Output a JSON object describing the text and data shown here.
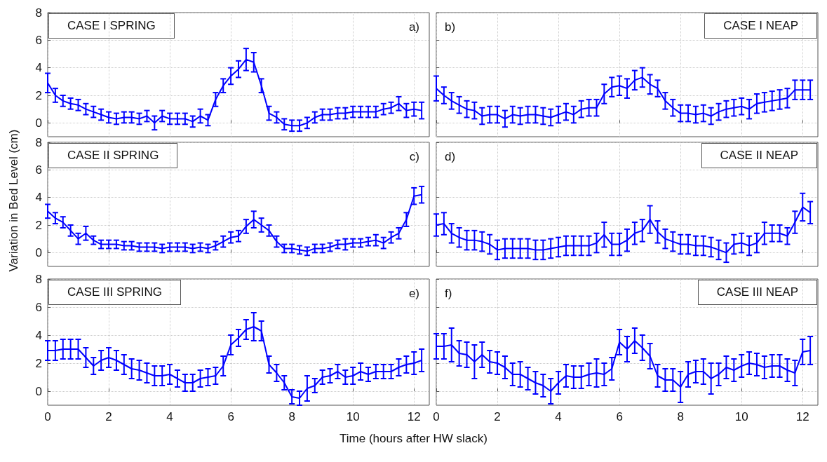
{
  "chart_data": [
    {
      "type": "line",
      "title": "CASE I SPRING",
      "annotations": [
        "a)"
      ],
      "xlim": [
        0,
        12.5
      ],
      "xticks": [
        0,
        2,
        4,
        6,
        8,
        10,
        12
      ],
      "ylim": [
        -1,
        8
      ],
      "yticks": [
        0,
        2,
        4,
        6,
        8
      ],
      "grid": true,
      "marker": "none",
      "tick_labels": "y",
      "x": [
        0,
        0.25,
        0.5,
        0.75,
        1,
        1.25,
        1.5,
        1.75,
        2,
        2.25,
        2.5,
        2.75,
        3,
        3.25,
        3.5,
        3.75,
        4,
        4.25,
        4.5,
        4.75,
        5,
        5.25,
        5.5,
        5.75,
        6,
        6.25,
        6.5,
        6.75,
        7,
        7.25,
        7.5,
        7.75,
        8,
        8.25,
        8.5,
        8.75,
        9,
        9.25,
        9.5,
        9.75,
        10,
        10.25,
        10.5,
        10.75,
        11,
        11.25,
        11.5,
        11.75,
        12,
        12.25
      ],
      "series": [
        {
          "color": "#0000ff",
          "values": [
            2.9,
            2.0,
            1.6,
            1.4,
            1.3,
            1.0,
            0.8,
            0.6,
            0.4,
            0.3,
            0.4,
            0.4,
            0.3,
            0.5,
            0.0,
            0.5,
            0.3,
            0.3,
            0.3,
            0.1,
            0.5,
            0.2,
            1.7,
            2.7,
            3.4,
            3.9,
            4.6,
            4.4,
            2.7,
            0.7,
            0.4,
            -0.1,
            -0.2,
            -0.2,
            0.0,
            0.4,
            0.6,
            0.6,
            0.7,
            0.7,
            0.8,
            0.8,
            0.8,
            0.8,
            1.0,
            1.1,
            1.4,
            0.9,
            1.0,
            0.9
          ],
          "errors": [
            0.7,
            0.5,
            0.4,
            0.4,
            0.4,
            0.4,
            0.4,
            0.4,
            0.4,
            0.4,
            0.4,
            0.4,
            0.4,
            0.4,
            0.5,
            0.4,
            0.4,
            0.4,
            0.4,
            0.4,
            0.5,
            0.4,
            0.5,
            0.5,
            0.6,
            0.6,
            0.8,
            0.7,
            0.5,
            0.5,
            0.4,
            0.4,
            0.4,
            0.4,
            0.4,
            0.4,
            0.4,
            0.4,
            0.4,
            0.4,
            0.4,
            0.4,
            0.4,
            0.4,
            0.4,
            0.4,
            0.5,
            0.5,
            0.5,
            0.6
          ]
        }
      ]
    },
    {
      "type": "line",
      "title": "CASE I NEAP",
      "annotations": [
        "b)"
      ],
      "xlim": [
        0,
        12.5
      ],
      "xticks": [
        0,
        2,
        4,
        6,
        8,
        10,
        12
      ],
      "ylim": [
        -1,
        8
      ],
      "yticks": [
        0,
        2,
        4,
        6,
        8
      ],
      "grid": true,
      "marker": "none",
      "tick_labels": false,
      "x": [
        0,
        0.25,
        0.5,
        0.75,
        1,
        1.25,
        1.5,
        1.75,
        2,
        2.25,
        2.5,
        2.75,
        3,
        3.25,
        3.5,
        3.75,
        4,
        4.25,
        4.5,
        4.75,
        5,
        5.25,
        5.5,
        5.75,
        6,
        6.25,
        6.5,
        6.75,
        7,
        7.25,
        7.5,
        7.75,
        8,
        8.25,
        8.5,
        8.75,
        9,
        9.25,
        9.5,
        9.75,
        10,
        10.25,
        10.5,
        10.75,
        11,
        11.25,
        11.5,
        11.75,
        12,
        12.25
      ],
      "series": [
        {
          "color": "#0000ff",
          "values": [
            2.5,
            2.0,
            1.6,
            1.3,
            1.0,
            0.9,
            0.5,
            0.6,
            0.6,
            0.3,
            0.6,
            0.5,
            0.6,
            0.6,
            0.5,
            0.4,
            0.6,
            0.8,
            0.6,
            1.0,
            1.1,
            1.1,
            2.1,
            2.6,
            2.7,
            2.5,
            3.1,
            3.3,
            2.8,
            2.5,
            1.6,
            1.1,
            0.7,
            0.7,
            0.6,
            0.7,
            0.5,
            0.8,
            1.0,
            1.1,
            1.2,
            1.0,
            1.4,
            1.5,
            1.6,
            1.7,
            1.8,
            2.4,
            2.4,
            2.4
          ],
          "errors": [
            0.9,
            0.6,
            0.6,
            0.6,
            0.6,
            0.6,
            0.6,
            0.6,
            0.6,
            0.6,
            0.6,
            0.6,
            0.6,
            0.6,
            0.6,
            0.6,
            0.6,
            0.6,
            0.6,
            0.6,
            0.6,
            0.6,
            0.7,
            0.7,
            0.7,
            0.7,
            0.7,
            0.7,
            0.7,
            0.6,
            0.6,
            0.6,
            0.6,
            0.6,
            0.6,
            0.6,
            0.6,
            0.6,
            0.6,
            0.6,
            0.6,
            0.7,
            0.7,
            0.7,
            0.7,
            0.7,
            0.7,
            0.7,
            0.7,
            0.7
          ]
        }
      ]
    },
    {
      "type": "line",
      "title": "CASE II SPRING",
      "annotations": [
        "c)"
      ],
      "ylabel": "Variation in Bed Level (cm)",
      "xlim": [
        0,
        12.5
      ],
      "xticks": [
        0,
        2,
        4,
        6,
        8,
        10,
        12
      ],
      "ylim": [
        -1,
        8
      ],
      "yticks": [
        0,
        2,
        4,
        6,
        8
      ],
      "grid": true,
      "marker": "none",
      "tick_labels": "y",
      "x": [
        0,
        0.25,
        0.5,
        0.75,
        1,
        1.25,
        1.5,
        1.75,
        2,
        2.25,
        2.5,
        2.75,
        3,
        3.25,
        3.5,
        3.75,
        4,
        4.25,
        4.5,
        4.75,
        5,
        5.25,
        5.5,
        5.75,
        6,
        6.25,
        6.5,
        6.75,
        7,
        7.25,
        7.5,
        7.75,
        8,
        8.25,
        8.5,
        8.75,
        9,
        9.25,
        9.5,
        9.75,
        10,
        10.25,
        10.5,
        10.75,
        11,
        11.25,
        11.5,
        11.75,
        12,
        12.25
      ],
      "series": [
        {
          "color": "#0000ff",
          "values": [
            3.0,
            2.5,
            2.2,
            1.6,
            1.0,
            1.4,
            0.9,
            0.6,
            0.6,
            0.6,
            0.5,
            0.5,
            0.4,
            0.4,
            0.4,
            0.3,
            0.4,
            0.4,
            0.4,
            0.3,
            0.4,
            0.3,
            0.5,
            0.8,
            1.1,
            1.2,
            1.9,
            2.4,
            2.0,
            1.6,
            0.8,
            0.3,
            0.3,
            0.2,
            0.1,
            0.3,
            0.3,
            0.4,
            0.6,
            0.6,
            0.7,
            0.7,
            0.8,
            0.9,
            0.7,
            1.1,
            1.4,
            2.4,
            4.1,
            4.2
          ],
          "errors": [
            0.5,
            0.4,
            0.4,
            0.4,
            0.4,
            0.5,
            0.3,
            0.3,
            0.3,
            0.3,
            0.3,
            0.3,
            0.3,
            0.3,
            0.3,
            0.3,
            0.3,
            0.3,
            0.3,
            0.3,
            0.3,
            0.3,
            0.3,
            0.4,
            0.4,
            0.4,
            0.5,
            0.6,
            0.5,
            0.4,
            0.4,
            0.3,
            0.3,
            0.3,
            0.3,
            0.3,
            0.3,
            0.3,
            0.3,
            0.4,
            0.3,
            0.3,
            0.3,
            0.4,
            0.4,
            0.4,
            0.4,
            0.5,
            0.6,
            0.6
          ]
        }
      ]
    },
    {
      "type": "line",
      "title": "CASE II NEAP",
      "annotations": [
        "d)"
      ],
      "xlim": [
        0,
        12.5
      ],
      "xticks": [
        0,
        2,
        4,
        6,
        8,
        10,
        12
      ],
      "ylim": [
        -1,
        8
      ],
      "yticks": [
        0,
        2,
        4,
        6,
        8
      ],
      "grid": true,
      "marker": "none",
      "tick_labels": false,
      "x": [
        0,
        0.25,
        0.5,
        0.75,
        1,
        1.25,
        1.5,
        1.75,
        2,
        2.25,
        2.5,
        2.75,
        3,
        3.25,
        3.5,
        3.75,
        4,
        4.25,
        4.5,
        4.75,
        5,
        5.25,
        5.5,
        5.75,
        6,
        6.25,
        6.5,
        6.75,
        7,
        7.25,
        7.5,
        7.75,
        8,
        8.25,
        8.5,
        8.75,
        9,
        9.25,
        9.5,
        9.75,
        10,
        10.25,
        10.5,
        10.75,
        11,
        11.25,
        11.5,
        11.75,
        12,
        12.25
      ],
      "series": [
        {
          "color": "#0000ff",
          "values": [
            2.0,
            2.1,
            1.4,
            1.1,
            0.9,
            0.9,
            0.8,
            0.6,
            0.2,
            0.3,
            0.3,
            0.3,
            0.3,
            0.2,
            0.2,
            0.3,
            0.4,
            0.5,
            0.5,
            0.5,
            0.5,
            0.7,
            1.3,
            0.6,
            0.6,
            0.9,
            1.4,
            1.6,
            2.4,
            1.5,
            1.0,
            0.8,
            0.6,
            0.6,
            0.5,
            0.5,
            0.4,
            0.2,
            0.0,
            0.6,
            0.7,
            0.5,
            0.7,
            1.4,
            1.4,
            1.4,
            1.2,
            2.2,
            3.3,
            2.9
          ],
          "errors": [
            0.8,
            0.8,
            0.7,
            0.7,
            0.7,
            0.7,
            0.7,
            0.7,
            0.7,
            0.7,
            0.7,
            0.7,
            0.7,
            0.7,
            0.7,
            0.7,
            0.7,
            0.7,
            0.7,
            0.7,
            0.7,
            0.7,
            0.9,
            0.8,
            0.8,
            0.8,
            0.8,
            0.8,
            1.0,
            0.8,
            0.7,
            0.7,
            0.7,
            0.7,
            0.7,
            0.7,
            0.7,
            0.7,
            0.7,
            0.7,
            0.7,
            0.7,
            0.7,
            0.8,
            0.6,
            0.6,
            0.6,
            0.8,
            1.0,
            0.8
          ]
        }
      ]
    },
    {
      "type": "line",
      "title": "CASE III SPRING",
      "annotations": [
        "e)"
      ],
      "xlabel": "Time (hours after HW slack)",
      "xlim": [
        0,
        12.5
      ],
      "xticks": [
        0,
        2,
        4,
        6,
        8,
        10,
        12
      ],
      "ylim": [
        -1,
        8
      ],
      "yticks": [
        0,
        2,
        4,
        6,
        8
      ],
      "grid": true,
      "marker": "none",
      "x": [
        0,
        0.25,
        0.5,
        0.75,
        1,
        1.25,
        1.5,
        1.75,
        2,
        2.25,
        2.5,
        2.75,
        3,
        3.25,
        3.5,
        3.75,
        4,
        4.25,
        4.5,
        4.75,
        5,
        5.25,
        5.5,
        5.75,
        6,
        6.25,
        6.5,
        6.75,
        7,
        7.25,
        7.5,
        7.75,
        8,
        8.25,
        8.5,
        8.75,
        9,
        9.25,
        9.5,
        9.75,
        10,
        10.25,
        10.5,
        10.75,
        11,
        11.25,
        11.5,
        11.75,
        12,
        12.25
      ],
      "series": [
        {
          "color": "#0000ff",
          "values": [
            2.9,
            2.9,
            3.0,
            3.0,
            3.0,
            2.4,
            1.8,
            2.2,
            2.4,
            2.2,
            1.9,
            1.6,
            1.5,
            1.3,
            1.1,
            1.1,
            1.2,
            0.9,
            0.6,
            0.6,
            0.9,
            1.0,
            1.1,
            1.8,
            3.3,
            3.8,
            4.4,
            4.6,
            4.3,
            1.9,
            1.3,
            0.6,
            -0.4,
            -0.5,
            0.2,
            0.4,
            1.0,
            1.1,
            1.4,
            1.0,
            1.1,
            1.4,
            1.2,
            1.4,
            1.4,
            1.4,
            1.7,
            1.9,
            2.0,
            2.2
          ],
          "errors": [
            0.7,
            0.7,
            0.7,
            0.7,
            0.7,
            0.7,
            0.6,
            0.7,
            0.7,
            0.7,
            0.7,
            0.7,
            0.7,
            0.7,
            0.7,
            0.7,
            0.7,
            0.6,
            0.6,
            0.6,
            0.6,
            0.6,
            0.6,
            0.7,
            0.7,
            0.6,
            0.7,
            1.0,
            0.7,
            0.6,
            0.6,
            0.5,
            0.5,
            0.5,
            0.9,
            0.5,
            0.5,
            0.5,
            0.5,
            0.5,
            0.6,
            0.6,
            0.5,
            0.5,
            0.5,
            0.5,
            0.6,
            0.6,
            0.8,
            0.8
          ]
        }
      ]
    },
    {
      "type": "line",
      "title": "CASE III NEAP",
      "annotations": [
        "f)"
      ],
      "xlim": [
        0,
        12.5
      ],
      "xticks": [
        0,
        2,
        4,
        6,
        8,
        10,
        12
      ],
      "ylim": [
        -1,
        8
      ],
      "yticks": [
        0,
        2,
        4,
        6,
        8
      ],
      "grid": true,
      "marker": "none",
      "tick_labels": "x",
      "x": [
        0,
        0.25,
        0.5,
        0.75,
        1,
        1.25,
        1.5,
        1.75,
        2,
        2.25,
        2.5,
        2.75,
        3,
        3.25,
        3.5,
        3.75,
        4,
        4.25,
        4.5,
        4.75,
        5,
        5.25,
        5.5,
        5.75,
        6,
        6.25,
        6.5,
        6.75,
        7,
        7.25,
        7.5,
        7.75,
        8,
        8.25,
        8.5,
        8.75,
        9,
        9.25,
        9.5,
        9.75,
        10,
        10.25,
        10.5,
        10.75,
        11,
        11.25,
        11.5,
        11.75,
        12,
        12.25
      ],
      "series": [
        {
          "color": "#0000ff",
          "values": [
            3.2,
            3.2,
            3.3,
            2.7,
            2.6,
            2.1,
            2.6,
            2.1,
            2.0,
            1.7,
            1.2,
            1.2,
            0.9,
            0.6,
            0.4,
            0.0,
            0.6,
            1.1,
            1.0,
            1.0,
            1.2,
            1.3,
            1.2,
            1.6,
            3.5,
            3.0,
            3.6,
            3.1,
            2.5,
            1.1,
            0.8,
            0.8,
            0.3,
            1.2,
            1.4,
            1.4,
            0.9,
            1.2,
            1.7,
            1.5,
            1.8,
            2.0,
            1.9,
            1.7,
            1.8,
            1.8,
            1.5,
            1.3,
            2.8,
            2.9
          ],
          "errors": [
            0.9,
            0.9,
            1.2,
            0.9,
            0.9,
            1.2,
            0.9,
            0.8,
            0.8,
            0.8,
            0.8,
            0.9,
            0.8,
            0.8,
            0.8,
            0.9,
            0.8,
            0.8,
            0.8,
            0.8,
            0.8,
            1.0,
            0.8,
            0.8,
            0.9,
            0.9,
            0.9,
            0.9,
            0.9,
            0.8,
            0.8,
            0.8,
            1.1,
            0.9,
            0.8,
            0.9,
            1.1,
            0.8,
            0.8,
            0.8,
            0.8,
            0.8,
            0.8,
            0.8,
            0.8,
            0.8,
            0.8,
            0.9,
            0.9,
            1.0
          ]
        }
      ]
    }
  ]
}
